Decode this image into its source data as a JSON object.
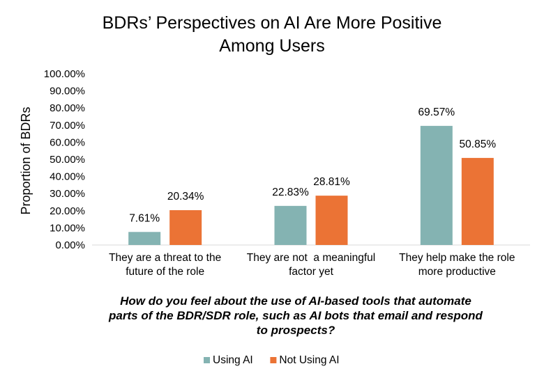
{
  "chart_data": {
    "type": "bar",
    "title": [
      "BDRs’ Perspectives on AI Are More Positive",
      "Among Users"
    ],
    "ylabel": "Proportion of BDRs",
    "xlabel": [
      "How do you feel about the use of AI-based tools that automate",
      "parts of the BDR/SDR role, such as AI bots that email and respond",
      "to prospects?"
    ],
    "categories": [
      [
        "They are a threat to the",
        "future of the role"
      ],
      [
        "They are not  a meaningful",
        "factor yet"
      ],
      [
        "They help make the role",
        "more productive"
      ]
    ],
    "series": [
      {
        "name": "Using AI",
        "color": "#84B3B2",
        "values": [
          7.61,
          22.83,
          69.57
        ],
        "labels": [
          "7.61%",
          "22.83%",
          "69.57%"
        ]
      },
      {
        "name": "Not Using AI",
        "color": "#EB7335",
        "values": [
          20.34,
          28.81,
          50.85
        ],
        "labels": [
          "20.34%",
          "28.81%",
          "50.85%"
        ]
      }
    ],
    "ylim": [
      0,
      100
    ],
    "yticks": [
      "0.00%",
      "10.00%",
      "20.00%",
      "30.00%",
      "40.00%",
      "50.00%",
      "60.00%",
      "70.00%",
      "80.00%",
      "90.00%",
      "100.00%"
    ],
    "grid": false,
    "legend_position": "bottom"
  }
}
